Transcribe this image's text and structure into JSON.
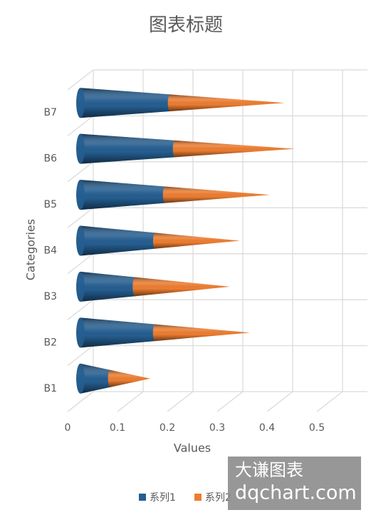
{
  "chart_data": {
    "type": "cone-bar-stacked-3d",
    "title": "图表标题",
    "x_label": "Values",
    "y_label": "Categories",
    "categories": [
      "B1",
      "B2",
      "B3",
      "B4",
      "B5",
      "B6",
      "B7"
    ],
    "series": [
      {
        "name": "系列1",
        "color": "#255e91",
        "values": [
          0.06,
          0.15,
          0.11,
          0.15,
          0.17,
          0.19,
          0.18
        ]
      },
      {
        "name": "系列2",
        "color": "#ed7d31",
        "values": [
          0.08,
          0.19,
          0.19,
          0.17,
          0.21,
          0.24,
          0.23
        ]
      }
    ],
    "xlim": [
      0,
      0.55
    ],
    "xticks": [
      0,
      0.1,
      0.2,
      0.3,
      0.4,
      0.5
    ],
    "grid": true,
    "legend": "bottom",
    "watermark": [
      "大谦图表",
      "dqchart.com"
    ]
  }
}
